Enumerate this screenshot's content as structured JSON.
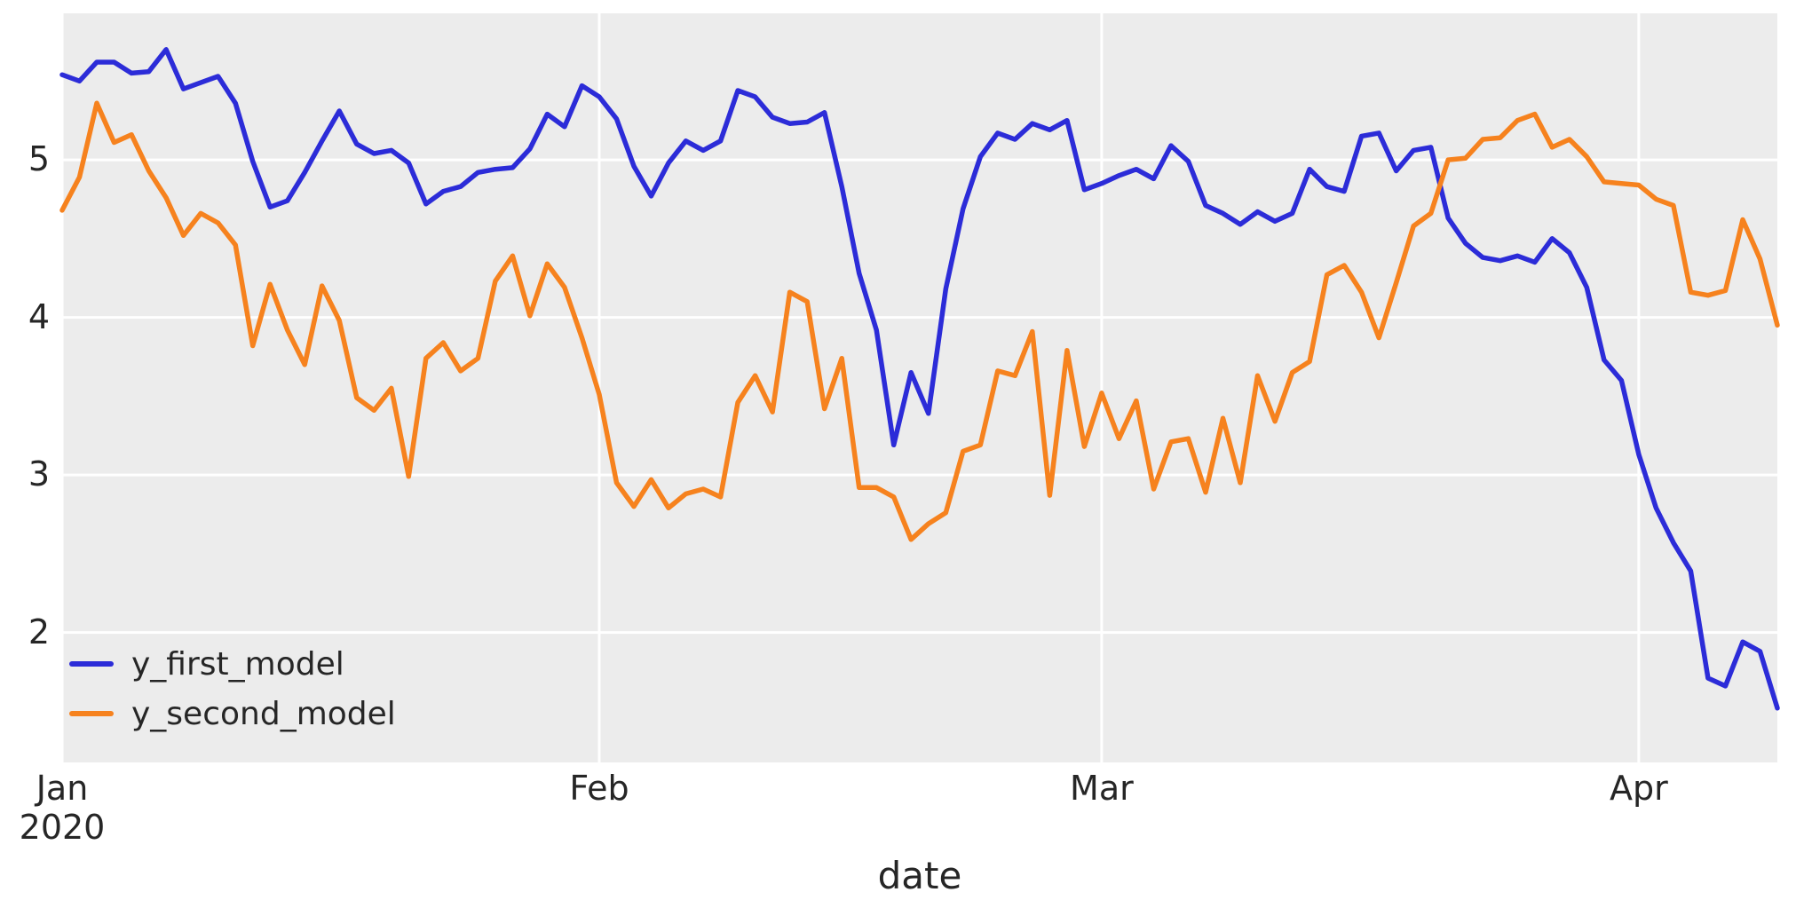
{
  "figure": {
    "background": "#ffffff",
    "plot_background": "#ececec",
    "grid_color": "#ffffff",
    "tick_color": "#262626",
    "xlabel": "date",
    "y_ticks": [
      2,
      3,
      4,
      5
    ],
    "x_ticks": [
      {
        "label": "Jan",
        "sublabel": "2020",
        "day": 0
      },
      {
        "label": "Feb",
        "sublabel": "",
        "day": 31
      },
      {
        "label": "Mar",
        "sublabel": "",
        "day": 60
      },
      {
        "label": "Apr",
        "sublabel": "",
        "day": 91
      }
    ]
  },
  "legend": {
    "entries": [
      {
        "label": "y_first_model",
        "color": "#2c2cd8"
      },
      {
        "label": "y_second_model",
        "color": "#f6821e"
      }
    ]
  },
  "chart_data": {
    "type": "line",
    "title": "",
    "xlabel": "date",
    "ylabel": "",
    "x_unit": "day",
    "x_start_date": "2020-01-01",
    "x_end_date": "2020-04-09",
    "xlim_days": [
      0,
      99
    ],
    "ylim": [
      1.175,
      5.93
    ],
    "grid": true,
    "legend_position": "lower-left",
    "series": [
      {
        "name": "y_first_model",
        "color": "#2c2cd8",
        "values": [
          5.54,
          5.5,
          5.62,
          5.62,
          5.55,
          5.56,
          5.7,
          5.45,
          5.49,
          5.53,
          5.36,
          4.99,
          4.7,
          4.74,
          4.92,
          5.12,
          5.31,
          5.1,
          5.04,
          5.06,
          4.98,
          4.72,
          4.8,
          4.83,
          4.92,
          4.94,
          4.95,
          5.07,
          5.29,
          5.21,
          5.47,
          5.4,
          5.26,
          4.96,
          4.77,
          4.98,
          5.12,
          5.06,
          5.12,
          5.44,
          5.4,
          5.27,
          5.23,
          5.24,
          5.3,
          4.83,
          4.28,
          3.92,
          3.19,
          3.65,
          3.39,
          4.18,
          4.69,
          5.02,
          5.17,
          5.13,
          5.23,
          5.19,
          5.25,
          4.81,
          4.85,
          4.9,
          4.94,
          4.88,
          5.09,
          4.99,
          4.71,
          4.66,
          4.59,
          4.67,
          4.61,
          4.66,
          4.94,
          4.83,
          4.8,
          5.15,
          5.17,
          4.93,
          5.06,
          5.08,
          4.63,
          4.47,
          4.38,
          4.36,
          4.39,
          4.35,
          4.5,
          4.41,
          4.19,
          3.73,
          3.6,
          3.13,
          2.79,
          2.57,
          2.39,
          1.71,
          1.66,
          1.94,
          1.88,
          1.52
        ]
      },
      {
        "name": "y_second_model",
        "color": "#f6821e",
        "values": [
          4.68,
          4.89,
          5.36,
          5.11,
          5.16,
          4.93,
          4.76,
          4.52,
          4.66,
          4.6,
          4.46,
          3.82,
          4.21,
          3.92,
          3.7,
          4.2,
          3.98,
          3.49,
          3.41,
          3.55,
          2.99,
          3.74,
          3.84,
          3.66,
          3.74,
          4.23,
          4.39,
          4.01,
          4.34,
          4.19,
          3.87,
          3.51,
          2.95,
          2.8,
          2.97,
          2.79,
          2.88,
          2.91,
          2.86,
          3.46,
          3.63,
          3.4,
          4.16,
          4.1,
          3.42,
          3.74,
          2.92,
          2.92,
          2.86,
          2.59,
          2.69,
          2.76,
          3.15,
          3.19,
          3.66,
          3.63,
          3.91,
          2.87,
          3.79,
          3.18,
          3.52,
          3.23,
          3.47,
          2.91,
          3.21,
          3.23,
          2.89,
          3.36,
          2.95,
          3.63,
          3.34,
          3.65,
          3.72,
          4.27,
          4.33,
          4.16,
          3.87,
          4.22,
          4.58,
          4.66,
          5.0,
          5.01,
          5.13,
          5.14,
          5.25,
          5.29,
          5.08,
          5.13,
          5.02,
          4.86,
          4.85,
          4.84,
          4.75,
          4.71,
          4.16,
          4.14,
          4.17,
          4.62,
          4.37,
          3.95
        ]
      }
    ]
  }
}
